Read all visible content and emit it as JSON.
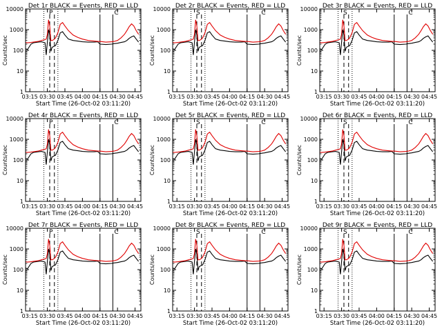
{
  "chart_data": [
    {
      "panel": "Det 1r",
      "title": "Det 1r BLACK = Events, RED = LLD",
      "secondary_label": "P"
    },
    {
      "panel": "Det 2r",
      "title": "Det 2r BLACK = Events, RED = LLD",
      "secondary_label": "S"
    },
    {
      "panel": "Det 3r",
      "title": "Det 3r BLACK = Events, RED = LLD",
      "secondary_label": "S"
    },
    {
      "panel": "Det 4r",
      "title": "Det 4r BLACK = Events, RED = LLD",
      "secondary_label": "P"
    },
    {
      "panel": "Det 5r",
      "title": "Det 5r BLACK = Events, RED = LLD",
      "secondary_label": "S"
    },
    {
      "panel": "Det 6r",
      "title": "Det 6r BLACK = Events, RED = LLD",
      "secondary_label": "S"
    },
    {
      "panel": "Det 7r",
      "title": "Det 7r BLACK = Events, RED = LLD",
      "secondary_label": "P"
    },
    {
      "panel": "Det 8r",
      "title": "Det 8r BLACK = Events, RED = LLD",
      "secondary_label": "S"
    },
    {
      "panel": "Det 9r",
      "title": "Det 9r BLACK = Events, RED = LLD",
      "secondary_label": "S"
    }
  ],
  "shared": {
    "type": "line",
    "xlabel": "Start Time (26-Oct-02 03:11:20)",
    "ylabel": "Counts/sec",
    "y_scale": "log",
    "ylim": [
      1,
      10000
    ],
    "y_ticks": [
      1,
      10,
      100,
      1000,
      10000
    ],
    "y_tick_labels": [
      "1",
      "10",
      "100",
      "1000",
      "10000"
    ],
    "xlim": [
      "03:11:20",
      "04:50:00"
    ],
    "x_ticks": [
      "03:15",
      "03:30",
      "03:45",
      "04:00",
      "04:15",
      "04:30",
      "04:45"
    ],
    "x_tick_labels": [
      "03:15",
      "03:30",
      "03:45",
      "04:00",
      "04:15",
      "04:30",
      "04:45"
    ],
    "corner_label": "C",
    "series": [
      {
        "name": "Events",
        "color": "#000000",
        "x": [
          "03:11:20",
          "03:13",
          "03:16",
          "03:18",
          "03:20",
          "03:22",
          "03:25",
          "03:28",
          "03:29",
          "03:30",
          "03:31",
          "03:32",
          "03:33",
          "03:34",
          "03:35",
          "03:36",
          "03:37",
          "03:39",
          "03:41",
          "03:43",
          "03:45",
          "03:48",
          "03:52",
          "03:56",
          "04:00",
          "04:05",
          "04:10",
          "04:13",
          "04:15",
          "04:20",
          "04:25",
          "04:27",
          "04:30",
          "04:33",
          "04:36",
          "04:38",
          "04:40",
          "04:42",
          "04:44",
          "04:46",
          "04:48"
        ],
        "values": [
          120,
          110,
          200,
          230,
          240,
          250,
          260,
          230,
          60,
          250,
          1000,
          550,
          90,
          140,
          150,
          160,
          170,
          300,
          700,
          800,
          550,
          350,
          300,
          280,
          260,
          250,
          250,
          260,
          200,
          190,
          200,
          210,
          220,
          240,
          260,
          300,
          380,
          450,
          500,
          350,
          250
        ]
      },
      {
        "name": "LLD",
        "color": "#e00000",
        "x": [
          "03:11:20",
          "03:13",
          "03:16",
          "03:18",
          "03:20",
          "03:22",
          "03:25",
          "03:28",
          "03:29",
          "03:30",
          "03:31",
          "03:32",
          "03:33",
          "03:34",
          "03:35",
          "03:36",
          "03:37",
          "03:39",
          "03:41",
          "03:43",
          "03:45",
          "03:48",
          "03:52",
          "03:56",
          "04:00",
          "04:05",
          "04:10",
          "04:13",
          "04:15",
          "04:20",
          "04:25",
          "04:27",
          "04:30",
          "04:33",
          "04:36",
          "04:38",
          "04:40",
          "04:42",
          "04:44",
          "04:46",
          "04:48"
        ],
        "values": [
          240,
          230,
          240,
          250,
          260,
          270,
          300,
          330,
          350,
          600,
          3000,
          1500,
          300,
          300,
          320,
          350,
          400,
          700,
          1800,
          2200,
          1500,
          900,
          550,
          420,
          350,
          300,
          280,
          270,
          270,
          250,
          260,
          270,
          300,
          400,
          600,
          900,
          1400,
          1900,
          1500,
          900,
          600
        ]
      }
    ],
    "dotted_lines_at": [
      "03:27",
      "03:39"
    ],
    "dashed_lines_at": [
      "03:32",
      "03:36"
    ],
    "solid_lines_at": [
      "04:15",
      "04:26"
    ]
  }
}
